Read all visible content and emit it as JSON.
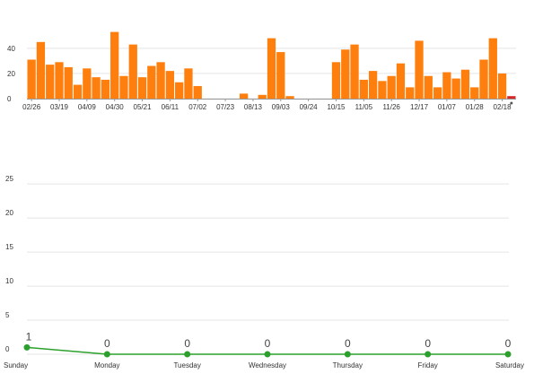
{
  "chart_data": [
    {
      "type": "bar",
      "title": "",
      "xlabel": "",
      "ylabel": "",
      "ylim": [
        0,
        57
      ],
      "y_ticks": [
        0,
        20,
        40
      ],
      "grid": true,
      "x_tick_labels": [
        "02/26",
        "03/19",
        "04/09",
        "04/30",
        "05/21",
        "06/11",
        "07/02",
        "07/23",
        "08/13",
        "09/03",
        "09/24",
        "10/15",
        "11/05",
        "11/26",
        "12/17",
        "01/07",
        "01/28",
        "02/18"
      ],
      "values": [
        31,
        45,
        27,
        29,
        25,
        11,
        24,
        17,
        15,
        53,
        18,
        43,
        17,
        26,
        29,
        22,
        13,
        24,
        10,
        0,
        0,
        0,
        0,
        4,
        0,
        3,
        48,
        37,
        2,
        0,
        0,
        0,
        0,
        29,
        39,
        43,
        15,
        22,
        14,
        18,
        28,
        9,
        46,
        18,
        9,
        21,
        16,
        23,
        9,
        31,
        48,
        20,
        2
      ],
      "highlight_index": 52,
      "colors": {
        "bar": "#ff7f0e",
        "highlight": "#d62728",
        "grid": "#e5e5e5"
      }
    },
    {
      "type": "line",
      "title": "",
      "xlabel": "",
      "ylabel": "",
      "ylim": [
        0,
        27
      ],
      "y_ticks": [
        0,
        5,
        10,
        15,
        20,
        25
      ],
      "grid": true,
      "categories": [
        "Sunday",
        "Monday",
        "Tuesday",
        "Wednesday",
        "Thursday",
        "Friday",
        "Saturday"
      ],
      "values": [
        1,
        0,
        0,
        0,
        0,
        0,
        0
      ],
      "data_labels": [
        "1",
        "0",
        "0",
        "0",
        "0",
        "0",
        "0"
      ],
      "colors": {
        "line": "#2ca02c",
        "marker": "#2ca02c",
        "grid": "#e5e5e5"
      }
    }
  ]
}
